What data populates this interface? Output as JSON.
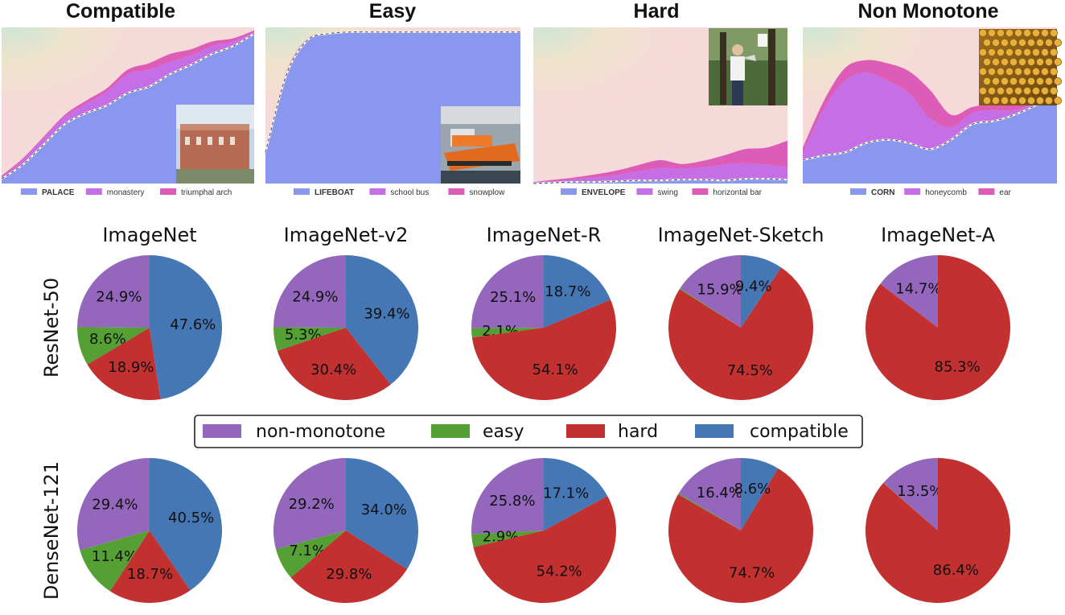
{
  "chart_data": [
    {
      "type": "area",
      "title": "Compatible",
      "legend": [
        "PALACE",
        "monastery",
        "triumphal arch"
      ],
      "ylim": [
        0,
        1
      ],
      "series": [
        {
          "name": "PALACE",
          "values": [
            0.03,
            0.12,
            0.25,
            0.38,
            0.45,
            0.5,
            0.58,
            0.62,
            0.7,
            0.76,
            0.83,
            0.88,
            0.96
          ]
        },
        {
          "name": "monastery",
          "values": [
            0.01,
            0.03,
            0.04,
            0.05,
            0.06,
            0.09,
            0.12,
            0.11,
            0.08,
            0.06,
            0.05,
            0.03,
            0.01
          ]
        },
        {
          "name": "triumphal arch",
          "values": [
            0.01,
            0.01,
            0.01,
            0.01,
            0.02,
            0.02,
            0.03,
            0.04,
            0.05,
            0.04,
            0.03,
            0.02,
            0.01
          ]
        }
      ]
    },
    {
      "type": "area",
      "title": "Easy",
      "legend": [
        "LIFEBOAT",
        "school bus",
        "snowplow"
      ],
      "ylim": [
        0,
        1
      ],
      "series": [
        {
          "name": "LIFEBOAT",
          "values": [
            0.2,
            0.7,
            0.92,
            0.96,
            0.97,
            0.97,
            0.97,
            0.97,
            0.97,
            0.97,
            0.97,
            0.97,
            0.97
          ]
        },
        {
          "name": "school bus",
          "values": [
            0.01,
            0.01,
            0.01,
            0,
            0,
            0,
            0,
            0,
            0,
            0,
            0,
            0,
            0
          ]
        },
        {
          "name": "snowplow",
          "values": [
            0.01,
            0.01,
            0,
            0,
            0,
            0,
            0,
            0,
            0,
            0,
            0,
            0,
            0
          ]
        }
      ]
    },
    {
      "type": "area",
      "title": "Hard",
      "legend": [
        "ENVELOPE",
        "swing",
        "horizontal bar"
      ],
      "ylim": [
        0,
        1
      ],
      "series": [
        {
          "name": "ENVELOPE",
          "values": [
            0,
            0.005,
            0.01,
            0.01,
            0.015,
            0.02,
            0.02,
            0.025,
            0.025,
            0.02,
            0.03,
            0.03,
            0.025
          ]
        },
        {
          "name": "swing",
          "values": [
            0.01,
            0.01,
            0.02,
            0.03,
            0.04,
            0.06,
            0.08,
            0.07,
            0.08,
            0.1,
            0.1,
            0.09,
            0.08
          ]
        },
        {
          "name": "horizontal bar",
          "values": [
            0,
            0.01,
            0.01,
            0.02,
            0.03,
            0.04,
            0.05,
            0.03,
            0.04,
            0.06,
            0.09,
            0.11,
            0.17
          ]
        }
      ]
    },
    {
      "type": "area",
      "title": "Non Monotone",
      "legend": [
        "CORN",
        "honeycomb",
        "ear"
      ],
      "ylim": [
        0,
        1
      ],
      "series": [
        {
          "name": "CORN",
          "values": [
            0.15,
            0.18,
            0.2,
            0.26,
            0.28,
            0.26,
            0.22,
            0.28,
            0.38,
            0.4,
            0.44,
            0.5,
            0.56
          ]
        },
        {
          "name": "honeycomb",
          "values": [
            0.05,
            0.3,
            0.46,
            0.45,
            0.38,
            0.32,
            0.2,
            0.08,
            0.07,
            0.07,
            0.03,
            0.02,
            0.02
          ]
        },
        {
          "name": "ear",
          "values": [
            0.03,
            0.05,
            0.08,
            0.08,
            0.11,
            0.14,
            0.18,
            0.08,
            0.04,
            0.04,
            0.05,
            0.04,
            0.03
          ]
        }
      ]
    },
    {
      "type": "pie",
      "title": "ImageNet",
      "row": "ResNet-50",
      "values": [
        24.9,
        8.6,
        18.9,
        47.6
      ],
      "labels": [
        "24.9%",
        "8.6%",
        "18.9%",
        "47.6%"
      ]
    },
    {
      "type": "pie",
      "title": "ImageNet-v2",
      "row": "ResNet-50",
      "values": [
        24.9,
        5.3,
        30.4,
        39.4
      ],
      "labels": [
        "24.9%",
        "5.3%",
        "30.4%",
        "39.4%"
      ]
    },
    {
      "type": "pie",
      "title": "ImageNet-R",
      "row": "ResNet-50",
      "values": [
        25.1,
        2.1,
        54.1,
        18.7
      ],
      "labels": [
        "25.1%",
        "2.1%",
        "54.1%",
        "18.7%"
      ]
    },
    {
      "type": "pie",
      "title": "ImageNet-Sketch",
      "row": "ResNet-50",
      "values": [
        15.9,
        0.2,
        74.5,
        9.4
      ],
      "labels": [
        "15.9%",
        "",
        "74.5%",
        "9.4%"
      ]
    },
    {
      "type": "pie",
      "title": "ImageNet-A",
      "row": "ResNet-50",
      "values": [
        14.7,
        0,
        85.3,
        0
      ],
      "labels": [
        "14.7%",
        "",
        "85.3%",
        ""
      ]
    },
    {
      "type": "pie",
      "title": "",
      "row": "DenseNet-121",
      "values": [
        29.4,
        11.4,
        18.7,
        40.5
      ],
      "labels": [
        "29.4%",
        "11.4%",
        "18.7%",
        "40.5%"
      ]
    },
    {
      "type": "pie",
      "title": "",
      "row": "DenseNet-121",
      "values": [
        29.2,
        7.1,
        29.8,
        34.0
      ],
      "labels": [
        "29.2%",
        "7.1%",
        "29.8%",
        "34.0%"
      ]
    },
    {
      "type": "pie",
      "title": "",
      "row": "DenseNet-121",
      "values": [
        25.8,
        2.9,
        54.2,
        17.1
      ],
      "labels": [
        "25.8%",
        "2.9%",
        "54.2%",
        "17.1%"
      ]
    },
    {
      "type": "pie",
      "title": "",
      "row": "DenseNet-121",
      "values": [
        16.4,
        0.3,
        74.7,
        8.6
      ],
      "labels": [
        "16.4%",
        "",
        "74.7%",
        "8.6%"
      ]
    },
    {
      "type": "pie",
      "title": "",
      "row": "DenseNet-121",
      "values": [
        13.5,
        0.1,
        86.4,
        0
      ],
      "labels": [
        "13.5%",
        "",
        "86.4%",
        ""
      ]
    }
  ],
  "row_labels": [
    "ResNet-50",
    "DenseNet-121"
  ],
  "pie_legend": {
    "categories": [
      "non-monotone",
      "easy",
      "hard",
      "compatible"
    ],
    "colors": [
      "#9467bd",
      "#55a035",
      "#c23030",
      "#4577b4"
    ]
  },
  "area_colors": {
    "top1": "#8a97ee",
    "top2": "#c56ee6",
    "top3": "#dd5cb8",
    "background": "#f6d9d9"
  },
  "photo_icons": [
    "palace-photo",
    "lifeboat-photo",
    "person-megaphone-photo",
    "corn-photo"
  ]
}
